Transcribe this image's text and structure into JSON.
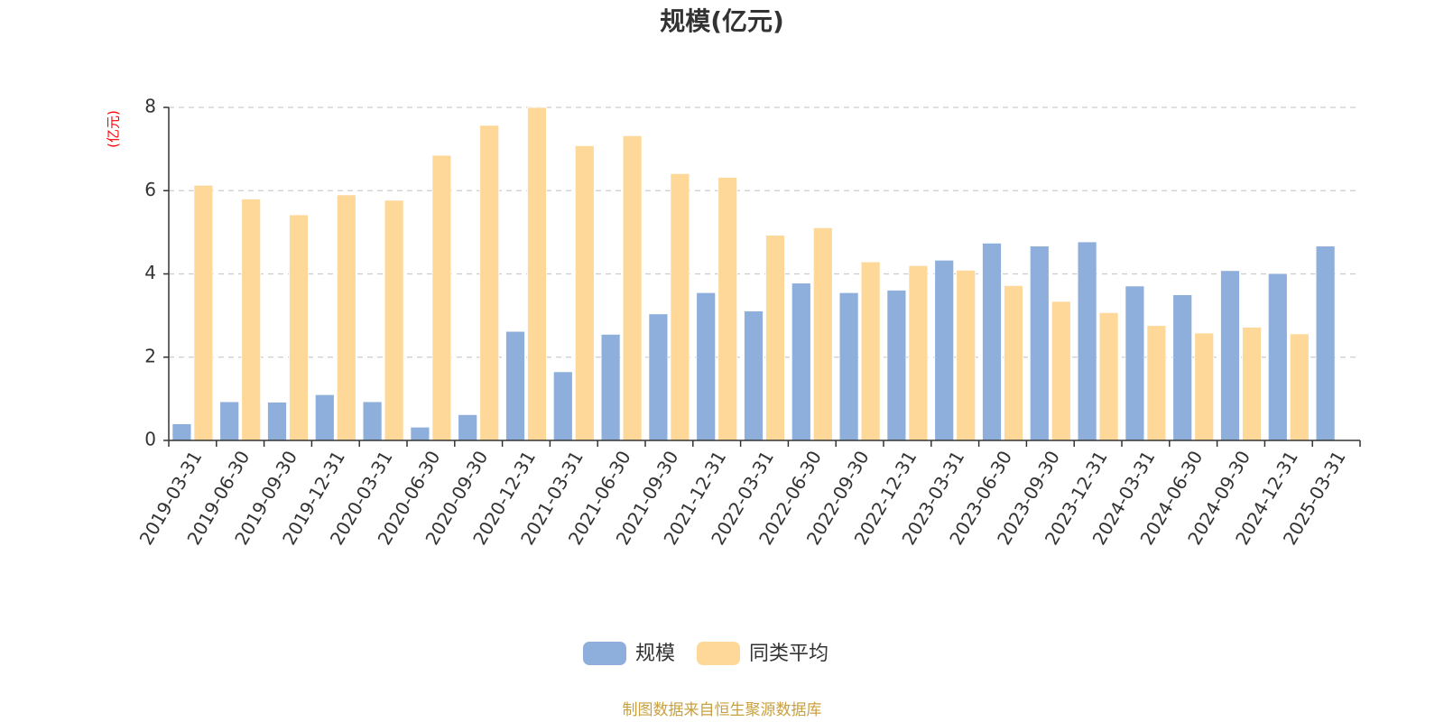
{
  "chart_data": {
    "type": "bar",
    "title": "规模(亿元)",
    "ylabel": "(亿元)",
    "xlabel": "",
    "ylim": [
      0,
      8
    ],
    "y_ticks": [
      "0",
      "2",
      "4",
      "6",
      "8"
    ],
    "grid": true,
    "legend_position": "bottom-center",
    "categories": [
      "2019-03-31",
      "2019-06-30",
      "2019-09-30",
      "2019-12-31",
      "2020-03-31",
      "2020-06-30",
      "2020-09-30",
      "2020-12-31",
      "2021-03-31",
      "2021-06-30",
      "2021-09-30",
      "2021-12-31",
      "2022-03-31",
      "2022-06-30",
      "2022-09-30",
      "2022-12-31",
      "2023-03-31",
      "2023-06-30",
      "2023-09-30",
      "2023-12-31",
      "2024-03-31",
      "2024-06-30",
      "2024-09-30",
      "2024-12-31",
      "2025-03-31"
    ],
    "series": [
      {
        "name": "规模",
        "color": "#8eaedb",
        "values": [
          0.4,
          0.93,
          0.92,
          1.1,
          0.93,
          0.32,
          0.62,
          2.62,
          1.65,
          2.55,
          3.04,
          3.55,
          3.11,
          3.78,
          3.55,
          3.61,
          4.33,
          4.74,
          4.67,
          4.77,
          3.71,
          3.5,
          4.08,
          4.01,
          4.67
        ]
      },
      {
        "name": "同类平均",
        "color": "#fdd898",
        "values": [
          6.13,
          5.8,
          5.42,
          5.9,
          5.77,
          6.85,
          7.57,
          8.0,
          7.08,
          7.32,
          6.41,
          6.32,
          4.93,
          5.11,
          4.29,
          4.2,
          4.09,
          3.72,
          3.34,
          3.07,
          2.76,
          2.58,
          2.72,
          2.56,
          null
        ]
      }
    ]
  },
  "unit_color": "#ff0000",
  "source_text": "制图数据来自恒生聚源数据库",
  "source_color": "#c8a040"
}
